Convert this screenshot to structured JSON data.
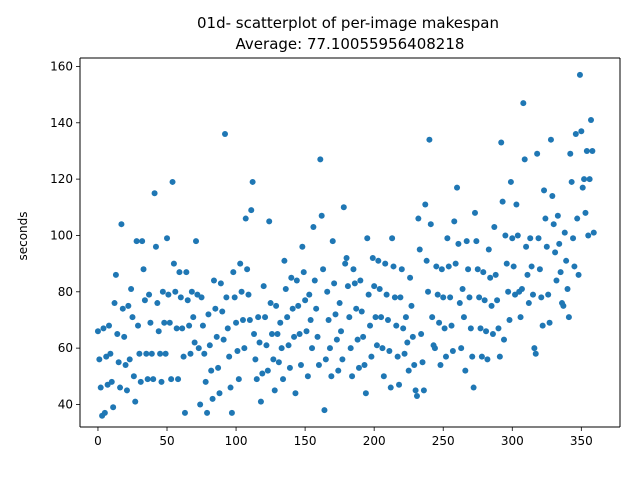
{
  "chart_data": {
    "type": "scatter",
    "title": "01d- scatterplot of per-image makespan",
    "subtitle": "Average: 77.10055956408218",
    "xlabel": "",
    "ylabel": "seconds",
    "xlim": [
      -13,
      378
    ],
    "ylim": [
      32,
      163
    ],
    "xticks": [
      0,
      50,
      100,
      150,
      200,
      250,
      300,
      350
    ],
    "yticks": [
      40,
      60,
      80,
      100,
      120,
      140,
      160
    ],
    "grid": false,
    "marker_color": "#1f77b4",
    "series": [
      {
        "values": [
          66,
          56,
          46,
          36,
          67,
          37,
          57,
          47,
          68,
          58,
          48,
          39,
          76,
          86,
          65,
          55,
          46,
          104,
          74,
          64,
          54,
          45,
          75,
          56,
          81,
          71,
          50,
          41,
          98,
          68,
          58,
          48,
          98,
          88,
          77,
          58,
          49,
          79,
          69,
          58,
          49,
          115,
          96,
          76,
          66,
          58,
          48,
          80,
          69,
          58,
          99,
          79,
          69,
          49,
          119,
          90,
          80,
          67,
          49,
          87,
          78,
          67,
          57,
          37,
          87,
          77,
          68,
          58,
          80,
          71,
          62,
          98,
          79,
          60,
          40,
          78,
          68,
          58,
          48,
          37,
          72,
          61,
          52,
          42,
          84,
          74,
          64,
          53,
          44,
          83,
          73,
          63,
          136,
          78,
          67,
          57,
          46,
          37,
          87,
          78,
          69,
          59,
          49,
          90,
          80,
          70,
          60,
          106,
          88,
          79,
          70,
          109,
          119,
          65,
          56,
          49,
          71,
          62,
          41,
          51,
          82,
          71,
          61,
          52,
          105,
          76,
          65,
          56,
          45,
          75,
          65,
          55,
          69,
          60,
          49,
          91,
          81,
          71,
          61,
          53,
          85,
          74,
          64,
          44,
          84,
          75,
          65,
          54,
          96,
          87,
          77,
          66,
          50,
          79,
          70,
          60,
          103,
          84,
          74,
          64,
          54,
          127,
          107,
          88,
          38,
          56,
          80,
          70,
          60,
          50,
          98,
          83,
          72,
          63,
          52,
          76,
          66,
          56,
          110,
          90,
          92,
          82,
          71,
          60,
          50,
          88,
          83,
          74,
          63,
          53,
          84,
          73,
          64,
          54,
          44,
          99,
          79,
          68,
          57,
          92,
          82,
          71,
          61,
          91,
          81,
          71,
          60,
          50,
          90,
          79,
          70,
          59,
          46,
          99,
          89,
          78,
          68,
          57,
          47,
          78,
          88,
          67,
          58,
          71,
          62,
          52,
          85,
          75,
          64,
          54,
          45,
          43,
          106,
          95,
          65,
          55,
          45,
          111,
          91,
          80,
          134,
          104,
          71,
          61,
          60,
          89,
          79,
          69,
          54,
          88,
          78,
          67,
          57,
          99,
          89,
          78,
          68,
          59,
          105,
          90,
          117,
          97,
          76,
          60,
          81,
          71,
          52,
          98,
          88,
          78,
          67,
          57,
          46,
          108,
          98,
          88,
          78,
          67,
          57,
          87,
          77,
          66,
          56,
          95,
          85,
          75,
          65,
          103,
          86,
          77,
          67,
          57,
          133,
          112,
          63,
          100,
          90,
          80,
          70,
          119,
          99,
          89,
          79,
          111,
          100,
          80,
          71,
          81,
          147,
          127,
          96,
          86,
          76,
          99,
          89,
          79,
          60,
          58,
          129,
          99,
          88,
          78,
          68,
          116,
          106,
          96,
          79,
          69,
          134,
          114,
          104,
          94,
          84,
          107,
          97,
          87,
          76,
          75,
          101,
          91,
          81,
          71,
          129,
          119,
          99,
          89,
          136,
          106,
          86,
          157,
          137,
          117,
          120,
          108,
          130,
          100,
          120,
          141,
          130,
          101
        ]
      }
    ]
  }
}
